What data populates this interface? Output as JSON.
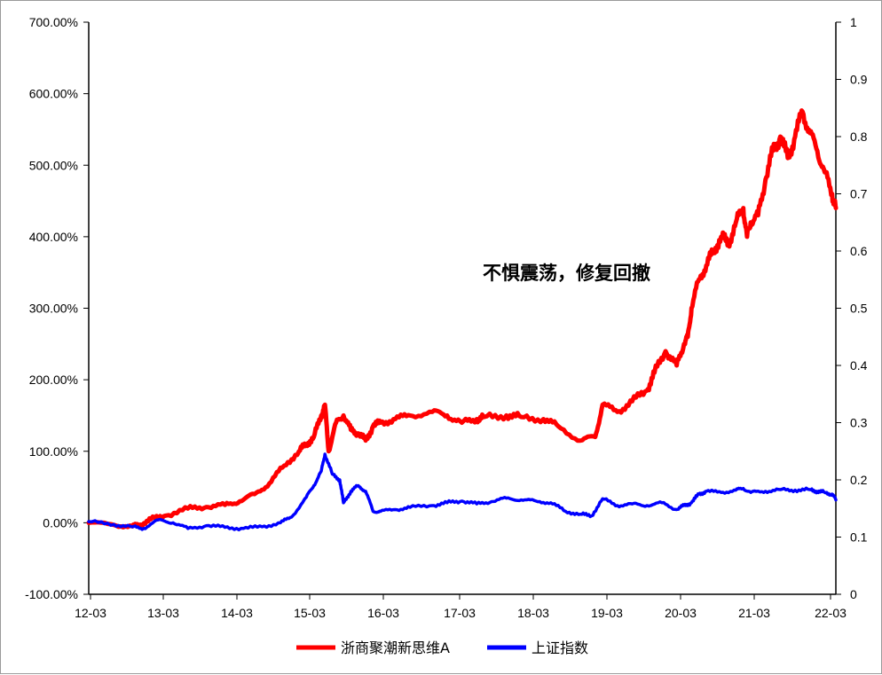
{
  "chart_data": {
    "type": "line",
    "annotation": "不惧震荡，修复回撤",
    "x_ticks": [
      "12-03",
      "13-03",
      "14-03",
      "15-03",
      "16-03",
      "17-03",
      "18-03",
      "19-03",
      "20-03",
      "21-03",
      "22-03"
    ],
    "y_left": {
      "ticks": [
        "700.00%",
        "600.00%",
        "500.00%",
        "400.00%",
        "300.00%",
        "200.00%",
        "100.00%",
        "0.00%",
        "-100.00%"
      ],
      "range": [
        -100,
        700
      ],
      "unit": "%"
    },
    "y_right": {
      "ticks": [
        "1",
        "0.9",
        "0.8",
        "0.7",
        "0.6",
        "0.5",
        "0.4",
        "0.3",
        "0.2",
        "0.1",
        "0"
      ],
      "range": [
        0,
        1
      ]
    },
    "legend_position": "bottom",
    "series": [
      {
        "name": "浙商聚潮新思维A",
        "color": "#ff0000",
        "x": [
          2012.16,
          2012.5,
          2012.75,
          2012.85,
          2013.0,
          2013.2,
          2013.5,
          2013.75,
          2014.0,
          2014.2,
          2014.4,
          2014.6,
          2014.8,
          2015.0,
          2015.1,
          2015.2,
          2015.3,
          2015.35,
          2015.4,
          2015.5,
          2015.6,
          2015.7,
          2015.8,
          2015.9,
          2016.0,
          2016.1,
          2016.3,
          2016.5,
          2016.8,
          2017.0,
          2017.2,
          2017.4,
          2017.5,
          2017.8,
          2018.0,
          2018.3,
          2018.5,
          2018.8,
          2019.0,
          2019.1,
          2019.3,
          2019.5,
          2019.7,
          2019.8,
          2019.95,
          2020.1,
          2020.2,
          2020.25,
          2020.3,
          2020.4,
          2020.5,
          2020.6,
          2020.7,
          2020.8,
          2020.9,
          2021.0,
          2021.05,
          2021.1,
          2021.2,
          2021.3,
          2021.4,
          2021.5,
          2021.6,
          2021.7,
          2021.8,
          2021.9,
          2022.0,
          2022.1,
          2022.2,
          2022.25
        ],
        "values": [
          0,
          -3,
          -5,
          -3,
          5,
          10,
          20,
          22,
          25,
          30,
          40,
          55,
          80,
          100,
          110,
          120,
          150,
          165,
          100,
          140,
          150,
          130,
          125,
          115,
          135,
          140,
          145,
          150,
          155,
          150,
          140,
          145,
          148,
          150,
          148,
          145,
          135,
          115,
          120,
          165,
          155,
          170,
          185,
          210,
          240,
          220,
          250,
          260,
          300,
          340,
          360,
          380,
          400,
          390,
          420,
          440,
          400,
          420,
          430,
          480,
          520,
          540,
          510,
          540,
          575,
          545,
          520,
          490,
          460,
          440
        ]
      },
      {
        "name": "上证指数",
        "color": "#0000ff",
        "x": [
          2012.16,
          2012.5,
          2012.75,
          2012.9,
          2013.1,
          2013.3,
          2013.5,
          2013.75,
          2014.0,
          2014.25,
          2014.5,
          2014.75,
          2014.9,
          2015.1,
          2015.2,
          2015.3,
          2015.35,
          2015.45,
          2015.55,
          2015.6,
          2015.7,
          2015.8,
          2015.9,
          2016.0,
          2016.1,
          2016.3,
          2016.5,
          2016.8,
          2017.0,
          2017.2,
          2017.4,
          2017.6,
          2017.8,
          2018.0,
          2018.2,
          2018.4,
          2018.6,
          2018.8,
          2018.95,
          2019.1,
          2019.3,
          2019.5,
          2019.7,
          2019.9,
          2020.1,
          2020.2,
          2020.3,
          2020.4,
          2020.5,
          2020.7,
          2020.9,
          2021.0,
          2021.1,
          2021.3,
          2021.5,
          2021.7,
          2021.9,
          2022.0,
          2022.1,
          2022.2,
          2022.25
        ],
        "values": [
          0.127,
          0.122,
          0.118,
          0.115,
          0.13,
          0.125,
          0.115,
          0.12,
          0.117,
          0.115,
          0.118,
          0.125,
          0.135,
          0.17,
          0.19,
          0.215,
          0.245,
          0.21,
          0.2,
          0.16,
          0.18,
          0.19,
          0.18,
          0.145,
          0.145,
          0.148,
          0.152,
          0.155,
          0.16,
          0.163,
          0.158,
          0.162,
          0.168,
          0.165,
          0.163,
          0.16,
          0.145,
          0.14,
          0.137,
          0.167,
          0.155,
          0.158,
          0.155,
          0.16,
          0.148,
          0.155,
          0.16,
          0.175,
          0.18,
          0.178,
          0.182,
          0.185,
          0.178,
          0.18,
          0.183,
          0.182,
          0.183,
          0.18,
          0.178,
          0.175,
          0.165
        ]
      }
    ]
  }
}
